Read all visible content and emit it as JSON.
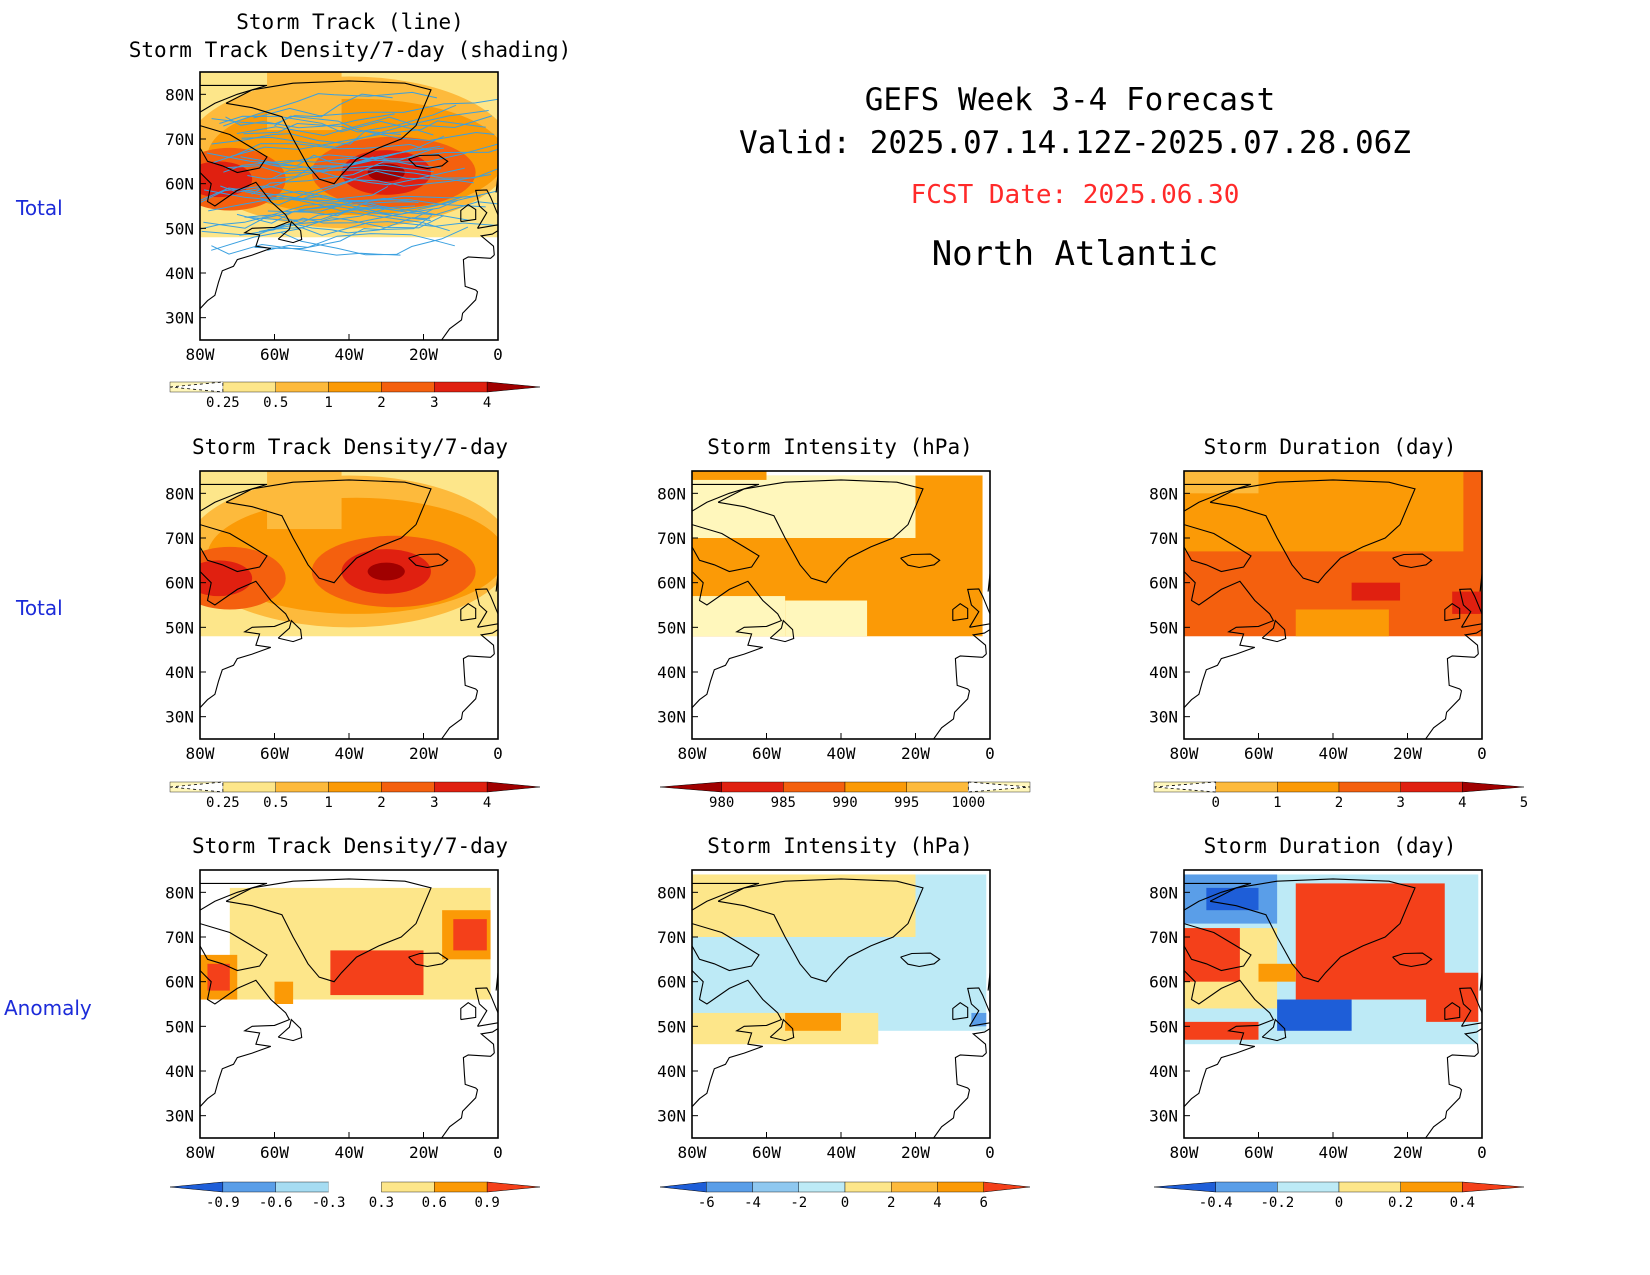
{
  "header": {
    "title_line1": "GEFS Week 3-4 Forecast",
    "title_line2": "Valid: 2025.07.14.12Z-2025.07.28.06Z",
    "fcst_date": "FCST Date: 2025.06.30",
    "region": "North Atlantic"
  },
  "row_labels": {
    "row1": "Total",
    "row2": "Total",
    "row3": "Anomaly"
  },
  "axes": {
    "lat_ticks": [
      "80N",
      "70N",
      "60N",
      "50N",
      "40N",
      "30N"
    ],
    "lon_ticks": [
      "80W",
      "60W",
      "40W",
      "20W",
      "0"
    ]
  },
  "panels": {
    "p1": {
      "title_line1": "Storm Track (line)",
      "title_line2": "Storm Track Density/7-day (shading)"
    },
    "p2": {
      "title": "Storm Track Density/7-day"
    },
    "p3": {
      "title": "Storm Intensity (hPa)"
    },
    "p4": {
      "title": "Storm Duration (day)"
    },
    "p5": {
      "title": "Storm Track Density/7-day"
    },
    "p6": {
      "title": "Storm Intensity (hPa)"
    },
    "p7": {
      "title": "Storm Duration (day)"
    }
  },
  "colorbars": {
    "density": {
      "labels": [
        "0.25",
        "0.5",
        "1",
        "2",
        "3",
        "4"
      ],
      "colors": [
        "#fff7bc",
        "#fde68a",
        "#fdba3c",
        "#fb9a06",
        "#f4600e",
        "#e02010",
        "#a00000"
      ]
    },
    "intensity": {
      "labels": [
        "980",
        "985",
        "990",
        "995",
        "1000"
      ],
      "colors": [
        "#a00000",
        "#e02010",
        "#f4600e",
        "#fb9a06",
        "#fdba3c",
        "#fff7bc"
      ]
    },
    "duration": {
      "labels": [
        "0",
        "1",
        "2",
        "3",
        "4",
        "5"
      ],
      "colors": [
        "#fff7bc",
        "#fdba3c",
        "#fb9a06",
        "#f4600e",
        "#e02010",
        "#a00000"
      ]
    },
    "density_anom": {
      "labels": [
        "-0.9",
        "-0.6",
        "-0.3",
        "0.3",
        "0.6",
        "0.9"
      ],
      "colors": [
        "#1e5ed8",
        "#5a9ee8",
        "#a6dcf2",
        "#ffffff",
        "#fde68a",
        "#fb9a06",
        "#f4401a"
      ]
    },
    "intensity_anom": {
      "labels": [
        "-6",
        "-4",
        "-2",
        "0",
        "2",
        "4",
        "6"
      ],
      "colors": [
        "#1e5ed8",
        "#5a9ee8",
        "#8fc8f0",
        "#bdeaf6",
        "#fde68a",
        "#fdba3c",
        "#fb9a06",
        "#f4401a"
      ]
    },
    "duration_anom": {
      "labels": [
        "-0.4",
        "-0.2",
        "0",
        "0.2",
        "0.4"
      ],
      "colors": [
        "#1e5ed8",
        "#5a9ee8",
        "#bdeaf6",
        "#fde68a",
        "#fb9a06",
        "#f4401a"
      ]
    }
  },
  "colors": {
    "row_label": "#1c2bd9",
    "fcst_date": "#ff2a2a",
    "storm_track_line": "#3aa0e0"
  }
}
